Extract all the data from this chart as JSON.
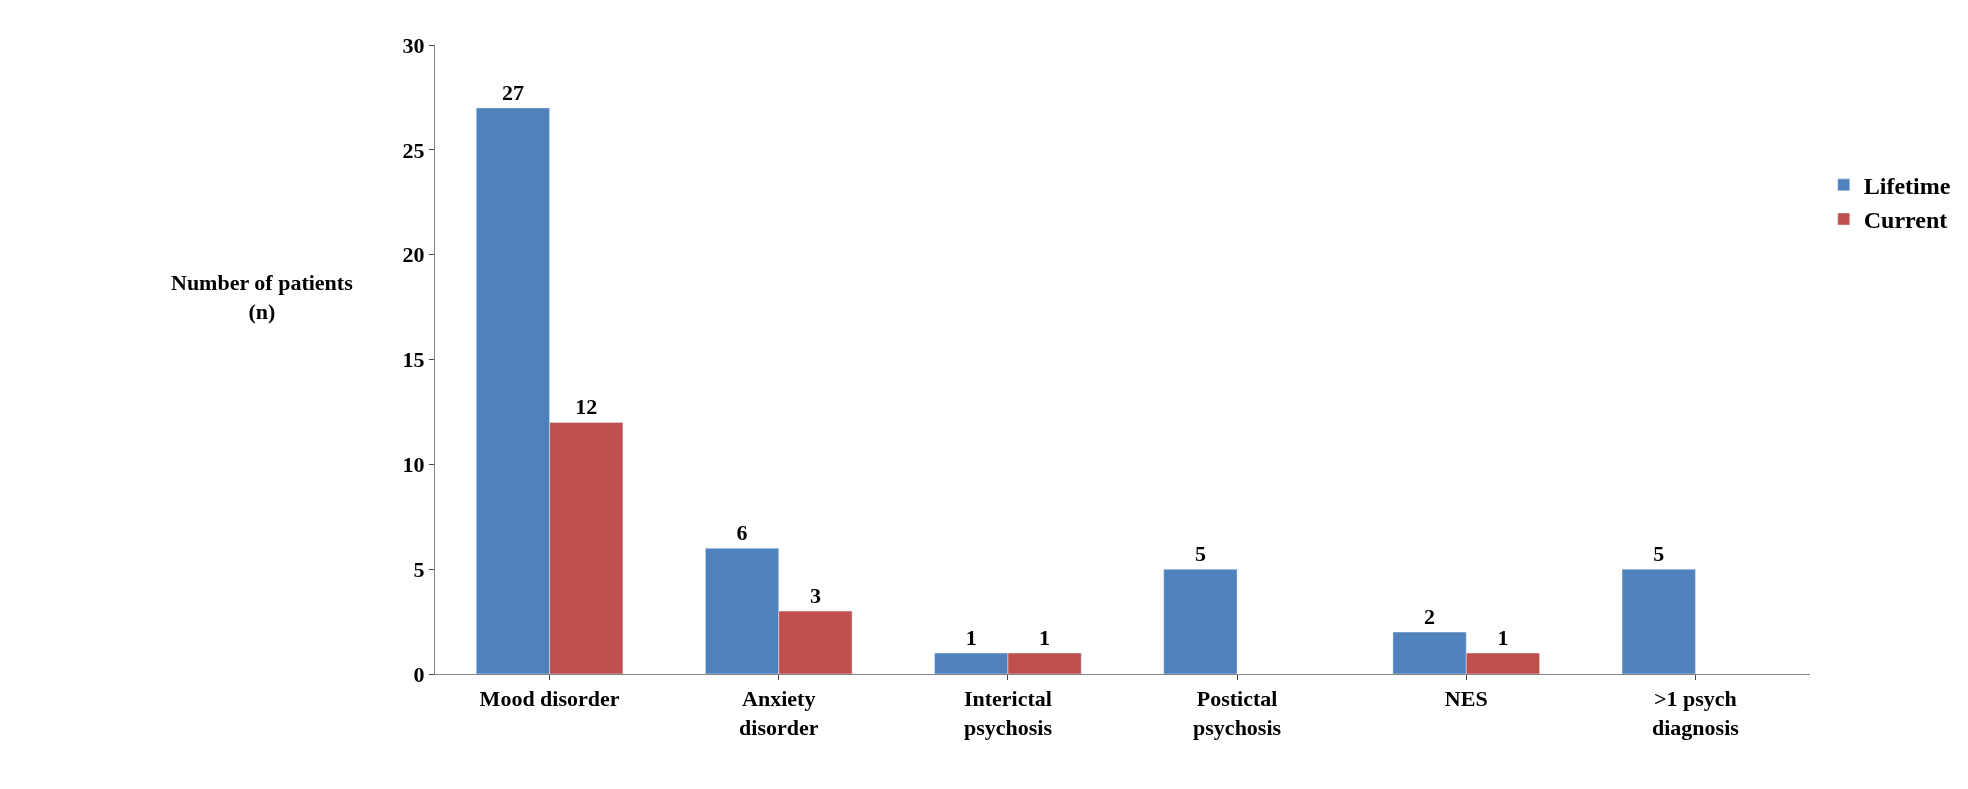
{
  "chart_data": {
    "type": "bar",
    "ylabel": "Number of patients\n(n)",
    "categories": [
      "Mood disorder",
      "Anxiety\ndisorder",
      "Interictal\npsychosis",
      "Postictal\npsychosis",
      "NES",
      ">1 psych\ndiagnosis"
    ],
    "series": [
      {
        "name": "Lifetime",
        "color": "#4f81bd",
        "values": [
          27,
          6,
          1,
          5,
          2,
          5
        ]
      },
      {
        "name": "Current",
        "color": "#c0504d",
        "values": [
          12,
          3,
          1,
          null,
          1,
          null
        ]
      }
    ],
    "ylim": [
      0,
      30
    ],
    "yticks": [
      0,
      5,
      10,
      15,
      20,
      25,
      30
    ],
    "data_labels": true,
    "legend": "right"
  }
}
